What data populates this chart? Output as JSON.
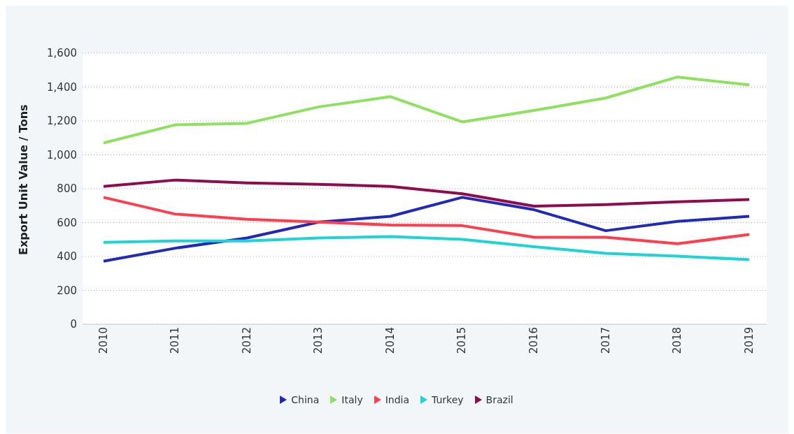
{
  "chart_data": {
    "type": "line",
    "ylabel": "Export Unit Value / Tons",
    "categories": [
      "2010",
      "2011",
      "2012",
      "2013",
      "2014",
      "2015",
      "2016",
      "2017",
      "2018",
      "2019"
    ],
    "ylim": [
      0,
      1600
    ],
    "yticks": [
      0,
      {
        "value": 200,
        "label": "200"
      },
      {
        "value": 400,
        "label": "400"
      },
      {
        "value": 600,
        "label": "600"
      },
      {
        "value": 800,
        "label": "800"
      },
      {
        "value": 1000,
        "label": "1,000"
      },
      {
        "value": 1200,
        "label": "1,200"
      },
      {
        "value": 1400,
        "label": "1,400"
      },
      {
        "value": 1600,
        "label": "1,600"
      }
    ],
    "grid": "y",
    "legend": "bottom",
    "marker": "none",
    "line_style": "solid",
    "series": [
      {
        "name": "China",
        "color": "#2029b8",
        "values": [
          372,
          449,
          509,
          603,
          637,
          749,
          676,
          552,
          607,
          637
        ]
      },
      {
        "name": "Italy",
        "color": "#8ee060",
        "values": [
          1070,
          1177,
          1186,
          1283,
          1343,
          1194,
          1262,
          1335,
          1459,
          1412
        ]
      },
      {
        "name": "India",
        "color": "#ff3d4d",
        "values": [
          749,
          650,
          620,
          603,
          586,
          582,
          513,
          513,
          475,
          530
        ]
      },
      {
        "name": "Turkey",
        "color": "#1dd3d3",
        "values": [
          483,
          492,
          492,
          509,
          518,
          501,
          458,
          419,
          402,
          381
        ]
      },
      {
        "name": "Brazil",
        "color": "#8f0a4f",
        "values": [
          813,
          851,
          834,
          826,
          813,
          770,
          697,
          706,
          723,
          736
        ]
      }
    ]
  }
}
